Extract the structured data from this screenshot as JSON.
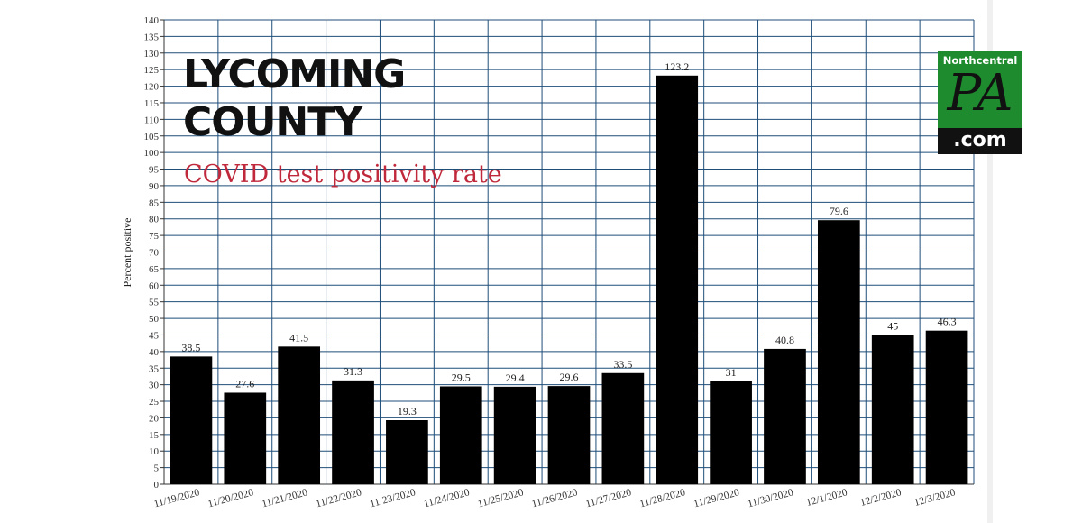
{
  "title": [
    "LYCOMING",
    "COUNTY"
  ],
  "subtitle": "COVID test positivity rate",
  "logo": {
    "top": "Northcentral",
    "middle": "PA",
    "bottom": ".com",
    "green": "#1e8b2e"
  },
  "colors": {
    "bar": "#000000",
    "grid": "#1f4e79",
    "subtitle": "#c0293b"
  },
  "chart_data": {
    "type": "bar",
    "ylabel": "Percent positive",
    "xlabel": "",
    "ylim": [
      0,
      140
    ],
    "ytick_step": 5,
    "grid": true,
    "categories": [
      "11/19/2020",
      "11/20/2020",
      "11/21/2020",
      "11/22/2020",
      "11/23/2020",
      "11/24/2020",
      "11/25/2020",
      "11/26/2020",
      "11/27/2020",
      "11/28/2020",
      "11/29/2020",
      "11/30/2020",
      "12/1/2020",
      "12/2/2020",
      "12/3/2020"
    ],
    "values": [
      38.5,
      27.6,
      41.5,
      31.3,
      19.3,
      29.5,
      29.4,
      29.6,
      33.5,
      123.2,
      31,
      40.8,
      79.6,
      45,
      46.3
    ],
    "data_labels": [
      "38.5",
      "27.6",
      "41.5",
      "31.3",
      "19.3",
      "29.5",
      "29.4",
      "29.6",
      "33.5",
      "123.2",
      "31",
      "40.8",
      "79.6",
      "45",
      "46.3"
    ]
  }
}
